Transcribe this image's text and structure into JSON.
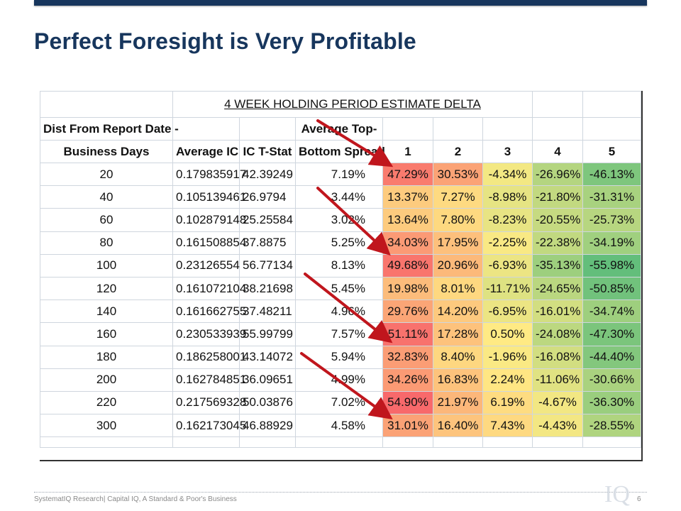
{
  "slide": {
    "title": "Perfect Foresight is Very Profitable",
    "footer": "SystematIQ Research| Capital IQ, A Standard & Poor's Business",
    "page_number": "6",
    "logo_text": "IQ"
  },
  "table": {
    "title": "4 WEEK HOLDING PERIOD ESTIMATE DELTA",
    "header_dist_line1": "Dist From Report Date -",
    "header_dist_line2": "Business Days",
    "header_avg_ic": "Average IC",
    "header_tstat": "IC T-Stat",
    "header_spread_line1": "Average Top-",
    "header_spread_line2": "Bottom Spread",
    "quintile_headers": [
      "1",
      "2",
      "3",
      "4",
      "5"
    ],
    "rows": [
      {
        "dist": "20",
        "ic": "0.179835917",
        "tstat": "42.39249",
        "spread": "7.19%",
        "q": [
          "47.29%",
          "30.53%",
          "-4.34%",
          "-26.96%",
          "-46.13%"
        ]
      },
      {
        "dist": "40",
        "ic": "0.105139461",
        "tstat": "26.9794",
        "spread": "3.44%",
        "q": [
          "13.37%",
          "7.27%",
          "-8.98%",
          "-21.80%",
          "-31.31%"
        ]
      },
      {
        "dist": "60",
        "ic": "0.102879148",
        "tstat": "25.25584",
        "spread": "3.02%",
        "q": [
          "13.64%",
          "7.80%",
          "-8.23%",
          "-20.55%",
          "-25.73%"
        ]
      },
      {
        "dist": "80",
        "ic": "0.161508854",
        "tstat": "37.8875",
        "spread": "5.25%",
        "q": [
          "34.03%",
          "17.95%",
          "-2.25%",
          "-22.38%",
          "-34.19%"
        ]
      },
      {
        "dist": "100",
        "ic": "0.23126554",
        "tstat": "56.77134",
        "spread": "8.13%",
        "q": [
          "49.68%",
          "20.96%",
          "-6.93%",
          "-35.13%",
          "-55.98%"
        ]
      },
      {
        "dist": "120",
        "ic": "0.161072104",
        "tstat": "38.21698",
        "spread": "5.45%",
        "q": [
          "19.98%",
          "8.01%",
          "-11.71%",
          "-24.65%",
          "-50.85%"
        ]
      },
      {
        "dist": "140",
        "ic": "0.161662755",
        "tstat": "37.48211",
        "spread": "4.96%",
        "q": [
          "29.76%",
          "14.20%",
          "-6.95%",
          "-16.01%",
          "-34.74%"
        ]
      },
      {
        "dist": "160",
        "ic": "0.230533939",
        "tstat": "55.99799",
        "spread": "7.57%",
        "q": [
          "51.11%",
          "17.28%",
          "0.50%",
          "-24.08%",
          "-47.30%"
        ]
      },
      {
        "dist": "180",
        "ic": "0.186258001",
        "tstat": "43.14072",
        "spread": "5.94%",
        "q": [
          "32.83%",
          "8.40%",
          "-1.96%",
          "-16.08%",
          "-44.40%"
        ]
      },
      {
        "dist": "200",
        "ic": "0.162784851",
        "tstat": "36.09651",
        "spread": "4.99%",
        "q": [
          "34.26%",
          "16.83%",
          "2.24%",
          "-11.06%",
          "-30.66%"
        ]
      },
      {
        "dist": "220",
        "ic": "0.217569328",
        "tstat": "50.03876",
        "spread": "7.02%",
        "q": [
          "54.90%",
          "21.97%",
          "6.19%",
          "-4.67%",
          "-36.30%"
        ]
      },
      {
        "dist": "300",
        "ic": "0.162173045",
        "tstat": "46.88929",
        "spread": "4.58%",
        "q": [
          "31.01%",
          "16.40%",
          "7.43%",
          "-4.43%",
          "-28.55%"
        ]
      }
    ],
    "heatmap_colors": {
      "high": "#f8696b",
      "mid": "#ffeb84",
      "low": "#63be7b"
    },
    "highlighted_row_indices": [
      0,
      3,
      7,
      10
    ]
  },
  "colors": {
    "title": "#17365d",
    "top_bar": "#17365d",
    "arrow": "#c0161d"
  }
}
